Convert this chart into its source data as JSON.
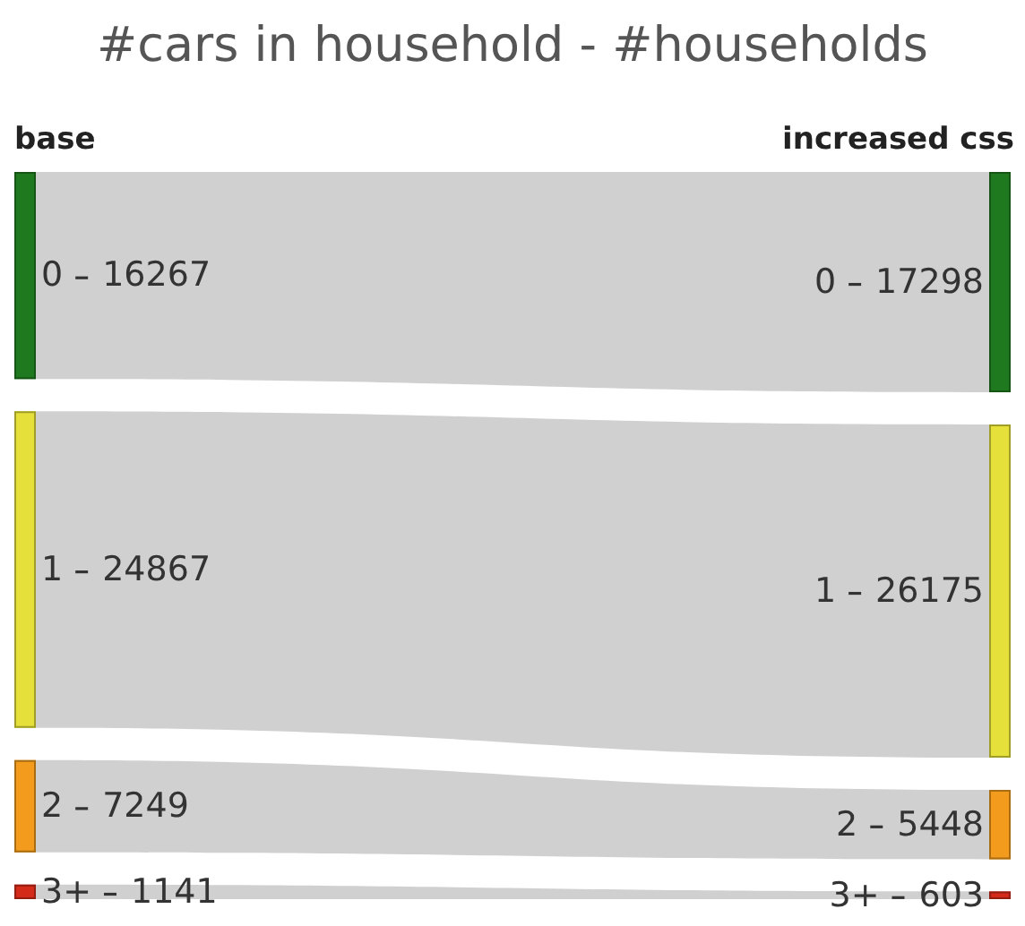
{
  "chart_data": {
    "type": "other",
    "title": "#cars in household - #households",
    "categories": [
      "0",
      "1",
      "2",
      "3+"
    ],
    "colors": [
      "#1f7a1f",
      "#e6e03a",
      "#f29b1c",
      "#d42a1a"
    ],
    "data_labels": true,
    "series": [
      {
        "name": "base",
        "values": [
          16267,
          24867,
          7249,
          1141
        ]
      },
      {
        "name": "increased css",
        "values": [
          17298,
          26175,
          5448,
          603
        ]
      }
    ]
  }
}
